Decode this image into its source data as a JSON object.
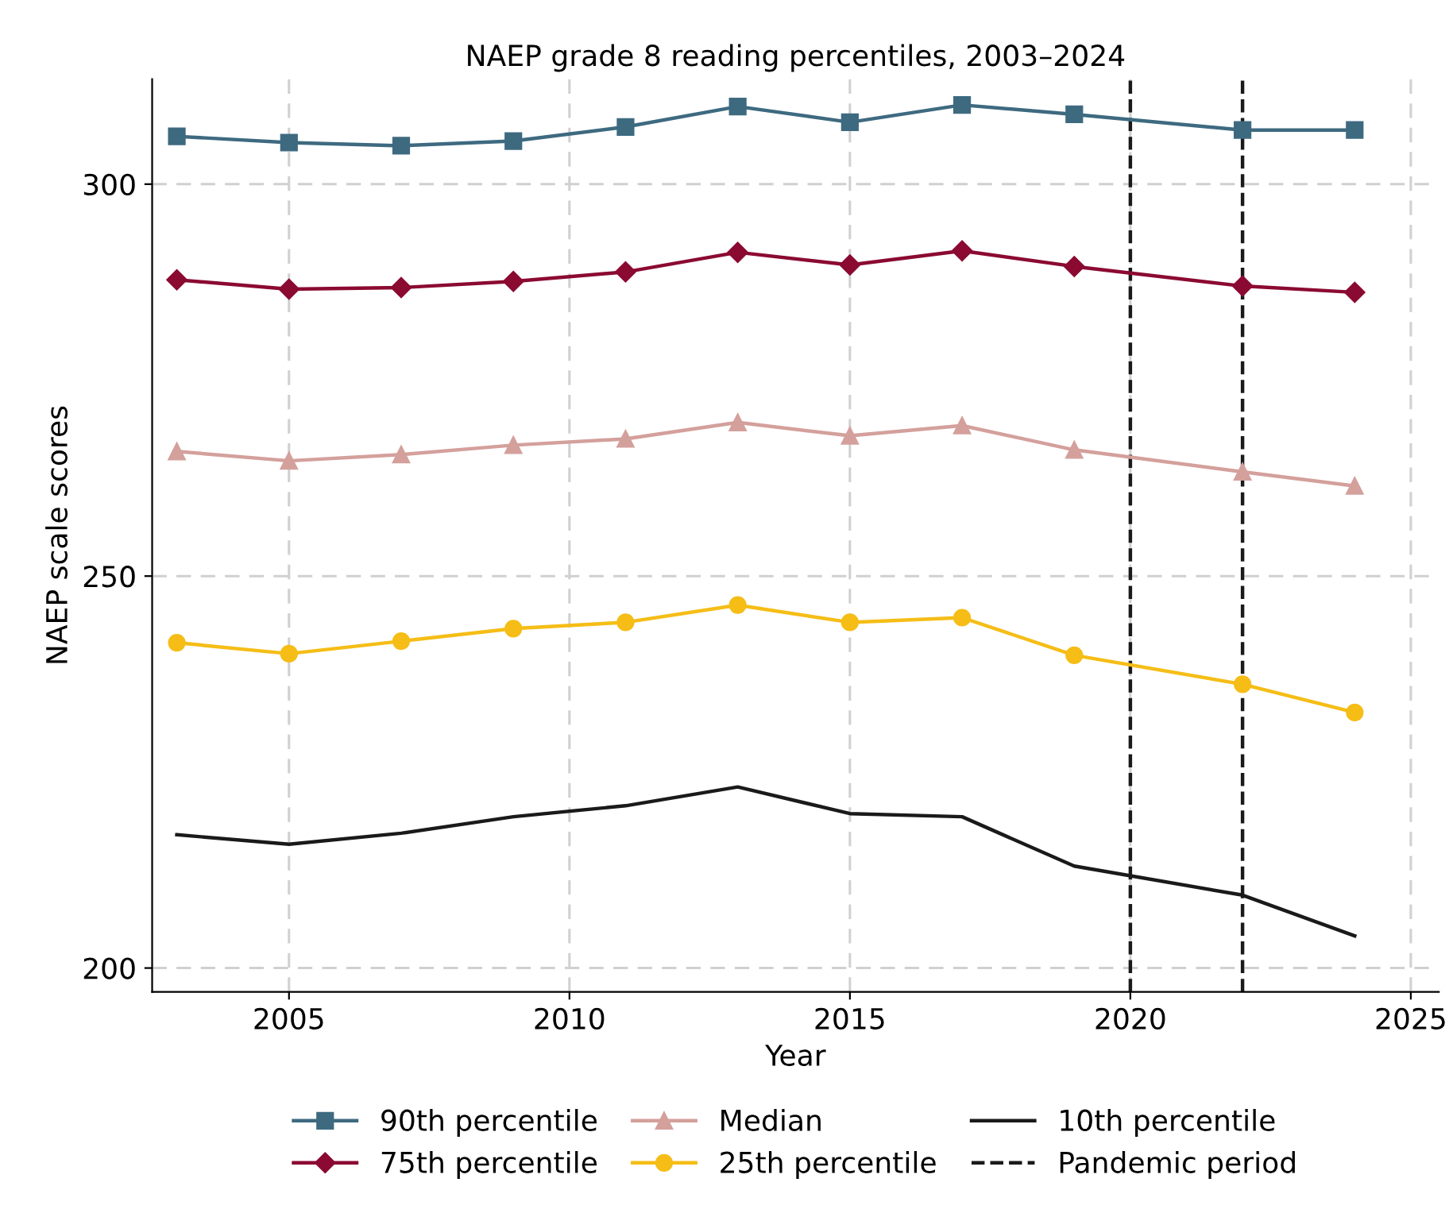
{
  "chart_data": {
    "type": "line",
    "title": "NAEP grade 8 reading percentiles, 2003–2024",
    "xlabel": "Year",
    "ylabel": "NAEP scale scores",
    "x": [
      2003,
      2005,
      2007,
      2009,
      2011,
      2013,
      2015,
      2017,
      2019,
      2022,
      2024
    ],
    "series": [
      {
        "name": "90th percentile",
        "color": "#3e6a80",
        "marker": "square",
        "values": [
          306.1,
          305.3,
          304.9,
          305.5,
          307.3,
          309.9,
          307.9,
          310.1,
          308.9,
          306.9,
          306.9
        ]
      },
      {
        "name": "75th percentile",
        "color": "#8b0a32",
        "marker": "diamond",
        "values": [
          287.8,
          286.6,
          286.8,
          287.6,
          288.8,
          291.3,
          289.7,
          291.5,
          289.5,
          287.0,
          286.2
        ]
      },
      {
        "name": "Median",
        "color": "#d4a09c",
        "marker": "triangle",
        "values": [
          265.9,
          264.7,
          265.5,
          266.7,
          267.5,
          269.6,
          267.9,
          269.2,
          266.1,
          263.3,
          261.5
        ]
      },
      {
        "name": "25th percentile",
        "color": "#f5bd16",
        "marker": "circle",
        "values": [
          241.5,
          240.1,
          241.7,
          243.3,
          244.1,
          246.3,
          244.1,
          244.7,
          239.9,
          236.2,
          232.6
        ]
      },
      {
        "name": "10th percentile",
        "color": "#1a1a1a",
        "marker": "none",
        "values": [
          217.0,
          215.8,
          217.2,
          219.3,
          220.7,
          223.1,
          219.7,
          219.3,
          213.0,
          209.3,
          204.1
        ]
      }
    ],
    "ref_lines": [
      {
        "axis": "x",
        "value": 2020,
        "label": "Pandemic period",
        "color": "#1a1a1a",
        "line_style": "dashed"
      },
      {
        "axis": "x",
        "value": 2022,
        "color": "#1a1a1a",
        "line_style": "dashed"
      }
    ],
    "xlim": [
      2002.56,
      2025.5
    ],
    "ylim": [
      196.96,
      313.4
    ],
    "xticks": [
      2005,
      2010,
      2015,
      2020,
      2025
    ],
    "yticks": [
      200,
      250,
      300
    ],
    "grid": true,
    "legend": "bottom",
    "line_style": "solid"
  }
}
